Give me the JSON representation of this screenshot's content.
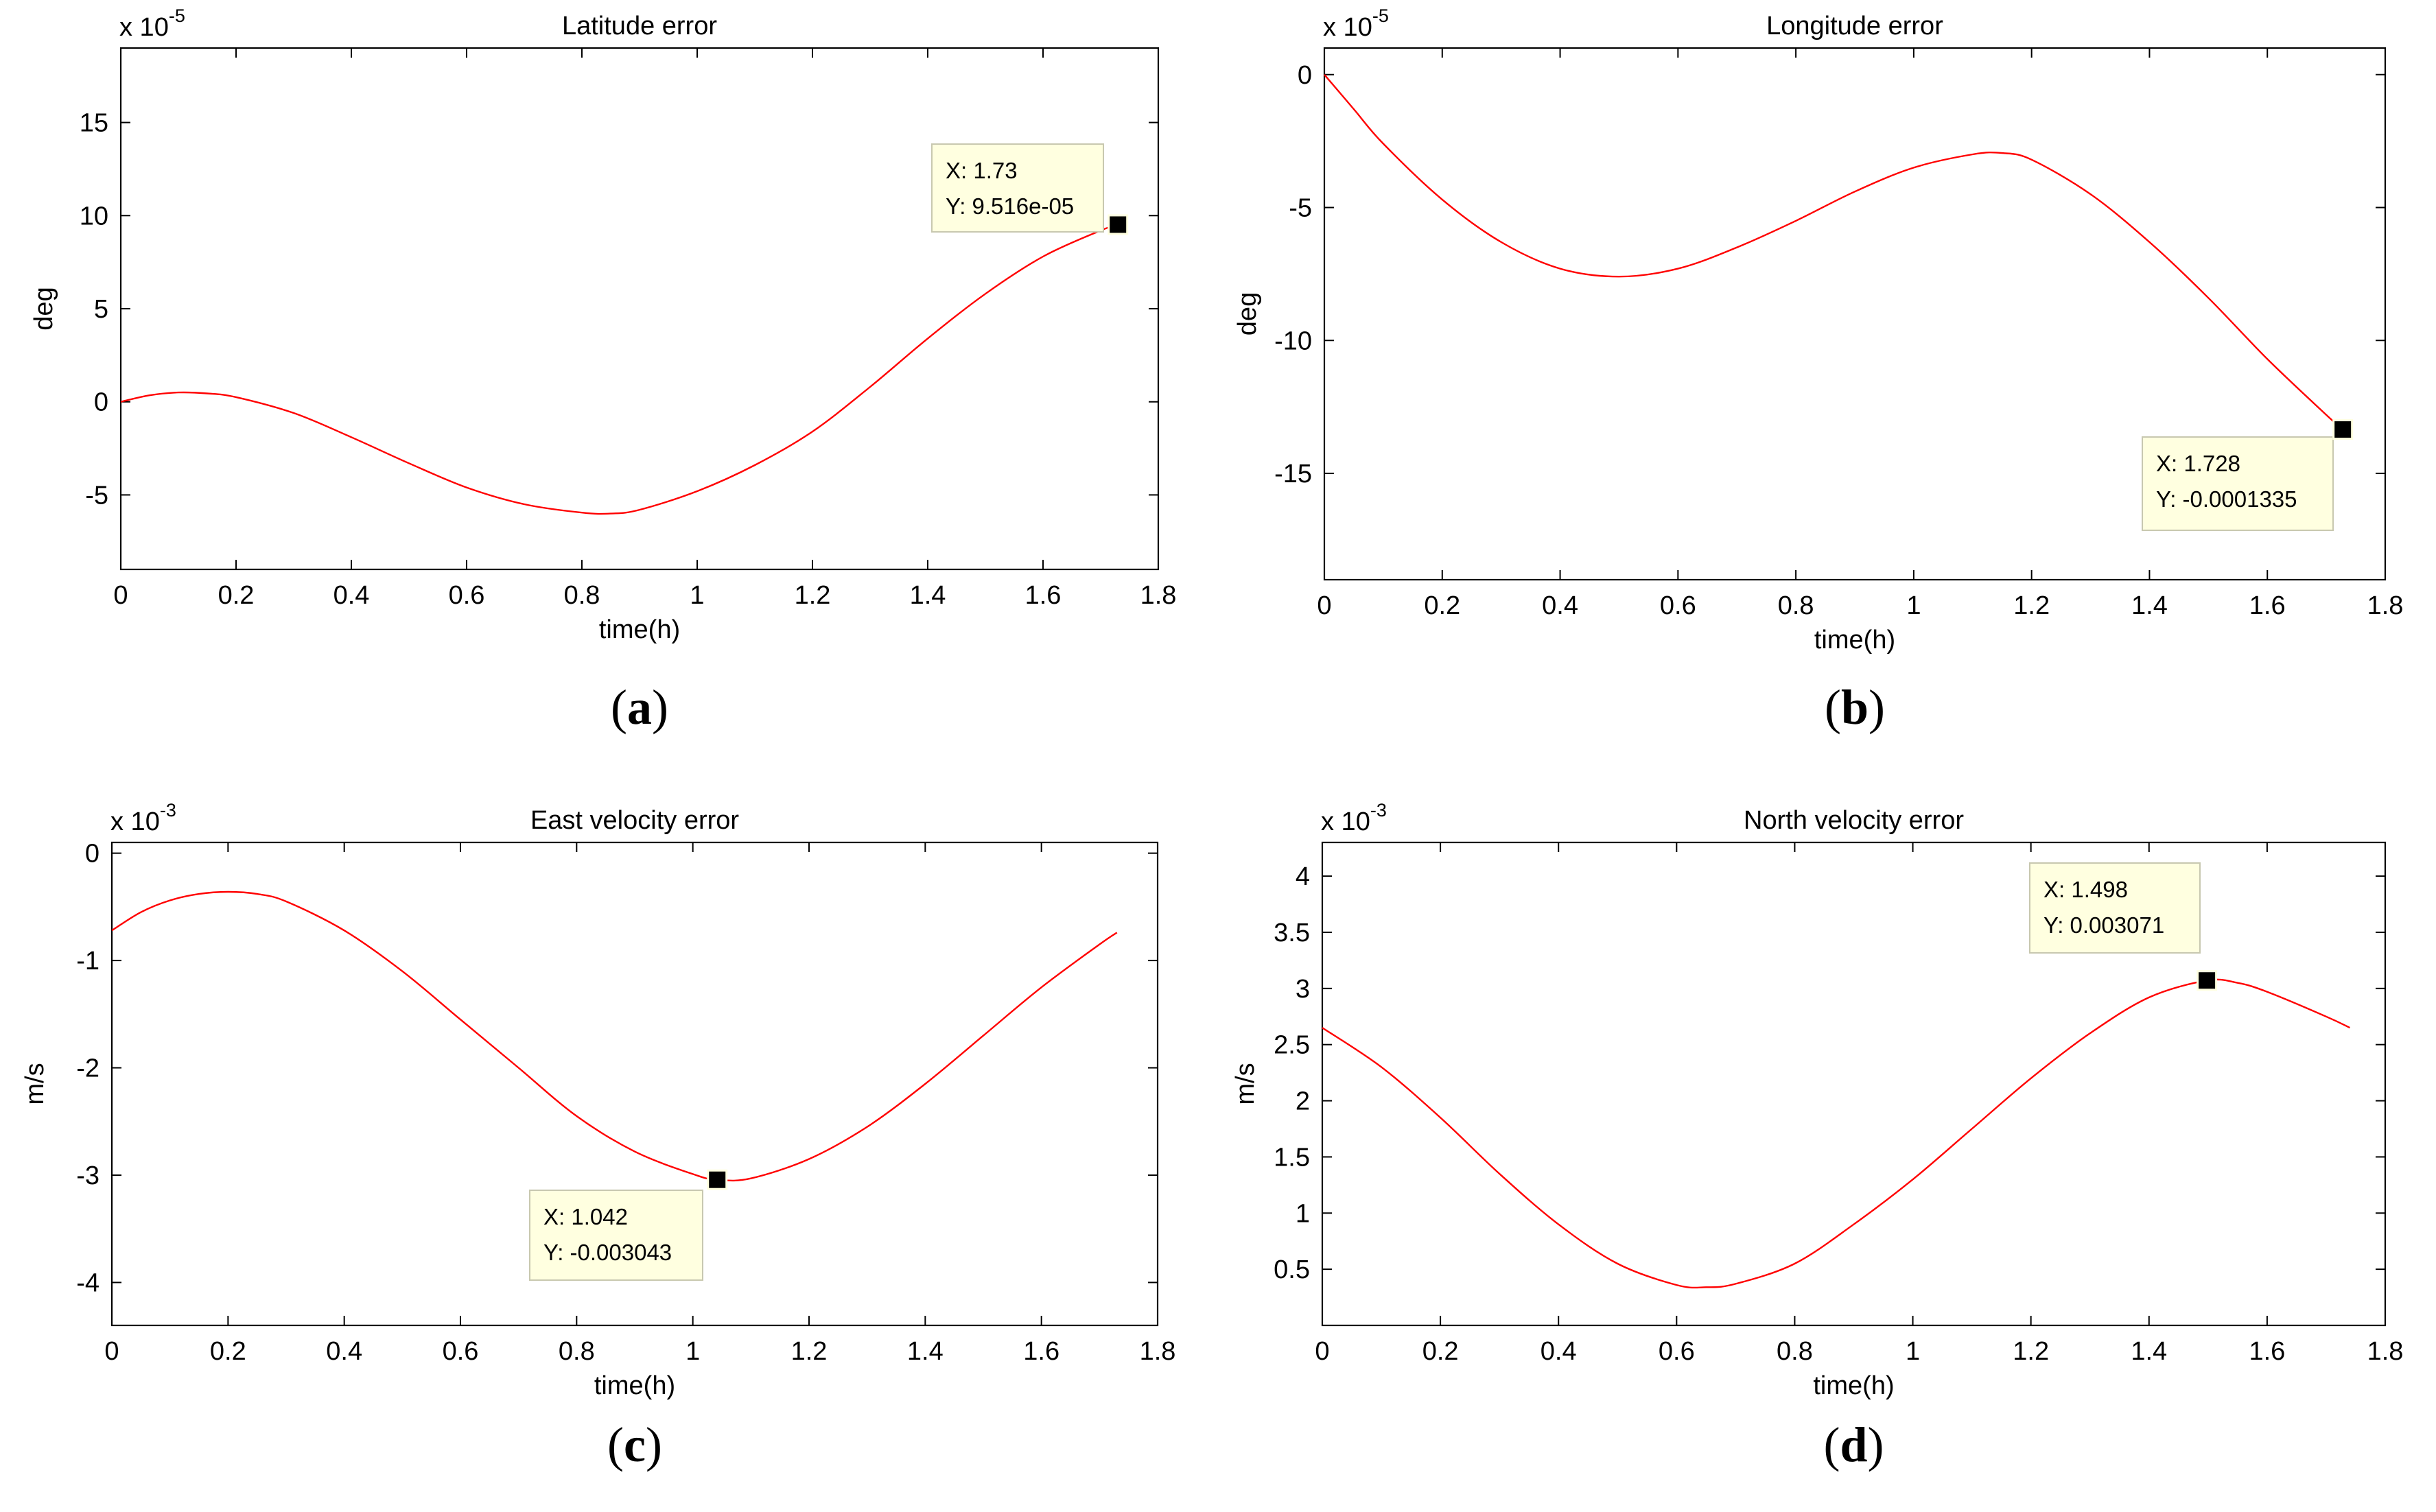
{
  "chart_data": [
    {
      "id": "a",
      "type": "line",
      "title": "Latitude error",
      "xlabel": "time(h)",
      "ylabel": "deg",
      "exponent_prefix": "x 10",
      "exponent": "-5",
      "caption": "a",
      "xlim": [
        0,
        1.8
      ],
      "ylim": [
        -9,
        19
      ],
      "xticks": [
        0,
        0.2,
        0.4,
        0.6,
        0.8,
        1,
        1.2,
        1.4,
        1.6,
        1.8
      ],
      "yticks": [
        -5,
        0,
        5,
        10,
        15
      ],
      "line_color": "#ff0000",
      "series": [
        {
          "name": "Latitude error",
          "x": [
            0,
            0.05,
            0.1,
            0.15,
            0.2,
            0.3,
            0.4,
            0.5,
            0.6,
            0.7,
            0.8,
            0.85,
            0.9,
            1.0,
            1.1,
            1.2,
            1.3,
            1.4,
            1.5,
            1.6,
            1.7,
            1.73
          ],
          "y": [
            0,
            0.35,
            0.5,
            0.45,
            0.25,
            -0.6,
            -1.9,
            -3.3,
            -4.6,
            -5.5,
            -5.95,
            -6.0,
            -5.8,
            -4.8,
            -3.4,
            -1.6,
            0.8,
            3.4,
            5.8,
            7.8,
            9.2,
            9.516
          ]
        }
      ],
      "datatip": {
        "x": 1.73,
        "y": 9.516,
        "text_x": "X: 1.73",
        "text_y": "Y: 9.516e-05",
        "placement": "upper-left"
      }
    },
    {
      "id": "b",
      "type": "line",
      "title": "Longitude error",
      "xlabel": "time(h)",
      "ylabel": "deg",
      "exponent_prefix": "x 10",
      "exponent": "-5",
      "caption": "b",
      "xlim": [
        0,
        1.8
      ],
      "ylim": [
        -19,
        1
      ],
      "xticks": [
        0,
        0.2,
        0.4,
        0.6,
        0.8,
        1,
        1.2,
        1.4,
        1.6,
        1.8
      ],
      "yticks": [
        -15,
        -10,
        -5,
        0
      ],
      "line_color": "#ff0000",
      "series": [
        {
          "name": "Longitude error",
          "x": [
            0,
            0.05,
            0.1,
            0.2,
            0.3,
            0.4,
            0.5,
            0.6,
            0.7,
            0.8,
            0.9,
            1.0,
            1.1,
            1.15,
            1.2,
            1.3,
            1.4,
            1.5,
            1.6,
            1.7,
            1.728
          ],
          "y": [
            0,
            -1.3,
            -2.6,
            -4.7,
            -6.3,
            -7.3,
            -7.6,
            -7.3,
            -6.5,
            -5.5,
            -4.4,
            -3.5,
            -3.0,
            -2.95,
            -3.2,
            -4.5,
            -6.3,
            -8.4,
            -10.7,
            -12.8,
            -13.35
          ]
        }
      ],
      "datatip": {
        "x": 1.728,
        "y": -13.35,
        "text_x": "X: 1.728",
        "text_y": "Y: -0.0001335",
        "placement": "lower-left"
      }
    },
    {
      "id": "c",
      "type": "line",
      "title": "East velocity error",
      "xlabel": "time(h)",
      "ylabel": "m/s",
      "exponent_prefix": "x 10",
      "exponent": "-3",
      "caption": "c",
      "xlim": [
        0,
        1.8
      ],
      "ylim": [
        -4.4,
        0.1
      ],
      "xticks": [
        0,
        0.2,
        0.4,
        0.6,
        0.8,
        1,
        1.2,
        1.4,
        1.6,
        1.8
      ],
      "yticks": [
        -4,
        -3,
        -2,
        -1,
        0
      ],
      "line_color": "#ff0000",
      "series": [
        {
          "name": "East velocity error",
          "x": [
            0,
            0.05,
            0.1,
            0.15,
            0.2,
            0.25,
            0.3,
            0.4,
            0.5,
            0.6,
            0.7,
            0.8,
            0.9,
            1.0,
            1.042,
            1.1,
            1.2,
            1.3,
            1.4,
            1.5,
            1.6,
            1.7,
            1.73
          ],
          "y": [
            -0.72,
            -0.55,
            -0.44,
            -0.38,
            -0.36,
            -0.38,
            -0.45,
            -0.72,
            -1.1,
            -1.55,
            -2.0,
            -2.45,
            -2.78,
            -2.99,
            -3.043,
            -3.03,
            -2.85,
            -2.55,
            -2.15,
            -1.7,
            -1.25,
            -0.85,
            -0.74
          ]
        }
      ],
      "datatip": {
        "x": 1.042,
        "y": -3.043,
        "text_x": "X: 1.042",
        "text_y": "Y: -0.003043",
        "placement": "lower-left"
      }
    },
    {
      "id": "d",
      "type": "line",
      "title": "North velocity error",
      "xlabel": "time(h)",
      "ylabel": "m/s",
      "exponent_prefix": "x 10",
      "exponent": "-3",
      "caption": "d",
      "xlim": [
        0,
        1.8
      ],
      "ylim": [
        0,
        4.3
      ],
      "xticks": [
        0,
        0.2,
        0.4,
        0.6,
        0.8,
        1,
        1.2,
        1.4,
        1.6,
        1.8
      ],
      "yticks": [
        0.5,
        1,
        1.5,
        2,
        2.5,
        3,
        3.5,
        4
      ],
      "line_color": "#ff0000",
      "series": [
        {
          "name": "North velocity error",
          "x": [
            0,
            0.1,
            0.2,
            0.3,
            0.4,
            0.5,
            0.6,
            0.65,
            0.7,
            0.8,
            0.9,
            1.0,
            1.1,
            1.2,
            1.3,
            1.4,
            1.498,
            1.55,
            1.6,
            1.7,
            1.74
          ],
          "y": [
            2.65,
            2.3,
            1.85,
            1.35,
            0.9,
            0.55,
            0.36,
            0.34,
            0.37,
            0.55,
            0.9,
            1.3,
            1.75,
            2.2,
            2.6,
            2.92,
            3.071,
            3.05,
            2.97,
            2.75,
            2.65
          ]
        }
      ],
      "datatip": {
        "x": 1.498,
        "y": 3.071,
        "text_x": "X: 1.498",
        "text_y": "Y: 0.003071",
        "placement": "upper-left"
      }
    }
  ]
}
